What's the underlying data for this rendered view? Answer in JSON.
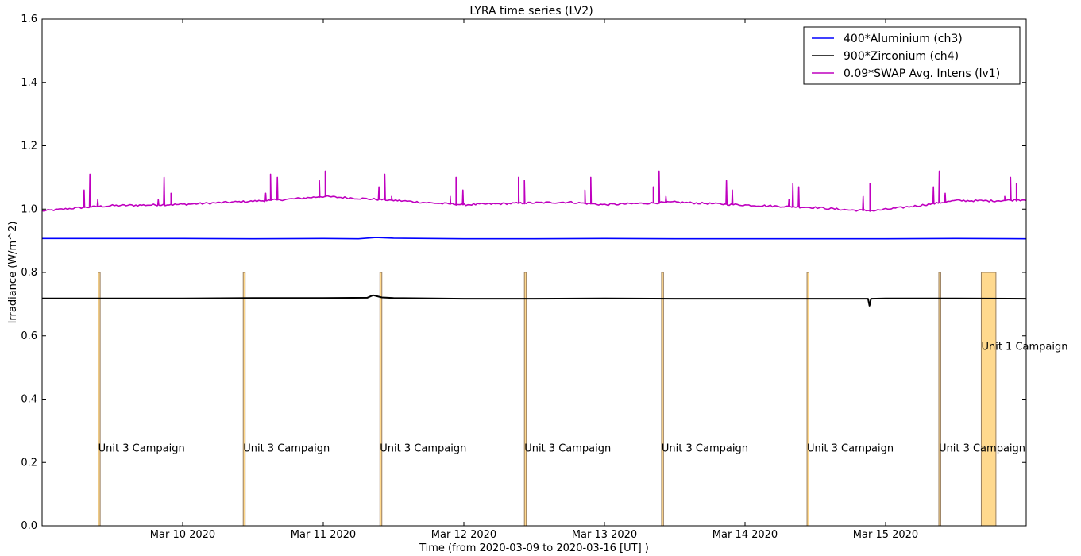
{
  "chart_data": {
    "type": "line",
    "title": "LYRA time series (LV2)",
    "xlabel": "Time (from 2020-03-09 to 2020-03-16 [UT] )",
    "ylabel": "Irradiance (W/m^2)",
    "xlim": [
      "2020-03-09T00:00",
      "2020-03-16T00:00"
    ],
    "ylim": [
      0.0,
      1.6
    ],
    "yticks": [
      {
        "value": 0.0,
        "label": "0.0"
      },
      {
        "value": 0.2,
        "label": "0.2"
      },
      {
        "value": 0.4,
        "label": "0.4"
      },
      {
        "value": 0.6,
        "label": "0.6"
      },
      {
        "value": 0.8,
        "label": "0.8"
      },
      {
        "value": 1.0,
        "label": "1.0"
      },
      {
        "value": 1.2,
        "label": "1.2"
      },
      {
        "value": 1.4,
        "label": "1.4"
      },
      {
        "value": 1.6,
        "label": "1.6"
      }
    ],
    "xticks": [
      {
        "value": "2020-03-10T00:00",
        "label": "Mar 10 2020"
      },
      {
        "value": "2020-03-11T00:00",
        "label": "Mar 11 2020"
      },
      {
        "value": "2020-03-12T00:00",
        "label": "Mar 12 2020"
      },
      {
        "value": "2020-03-13T00:00",
        "label": "Mar 13 2020"
      },
      {
        "value": "2020-03-14T00:00",
        "label": "Mar 14 2020"
      },
      {
        "value": "2020-03-15T00:00",
        "label": "Mar 15 2020"
      }
    ],
    "grid": false,
    "legend_position": "top-right",
    "series": [
      {
        "name": "400*Aluminium (ch3)",
        "color": "#0000ff",
        "points": [
          [
            "2020-03-09T00:00",
            0.907
          ],
          [
            "2020-03-09T12:00",
            0.907
          ],
          [
            "2020-03-10T00:00",
            0.907
          ],
          [
            "2020-03-10T12:00",
            0.906
          ],
          [
            "2020-03-11T00:00",
            0.907
          ],
          [
            "2020-03-11T06:00",
            0.906
          ],
          [
            "2020-03-11T09:00",
            0.91
          ],
          [
            "2020-03-11T12:00",
            0.908
          ],
          [
            "2020-03-12T00:00",
            0.906
          ],
          [
            "2020-03-12T12:00",
            0.906
          ],
          [
            "2020-03-13T00:00",
            0.907
          ],
          [
            "2020-03-13T12:00",
            0.906
          ],
          [
            "2020-03-14T00:00",
            0.906
          ],
          [
            "2020-03-14T12:00",
            0.906
          ],
          [
            "2020-03-15T00:00",
            0.906
          ],
          [
            "2020-03-15T12:00",
            0.907
          ],
          [
            "2020-03-16T00:00",
            0.906
          ]
        ]
      },
      {
        "name": "900*Zirconium (ch4)",
        "color": "#000000",
        "points": [
          [
            "2020-03-09T00:00",
            0.718
          ],
          [
            "2020-03-09T12:00",
            0.718
          ],
          [
            "2020-03-10T00:00",
            0.718
          ],
          [
            "2020-03-10T12:00",
            0.719
          ],
          [
            "2020-03-11T00:00",
            0.719
          ],
          [
            "2020-03-11T07:30",
            0.72
          ],
          [
            "2020-03-11T08:30",
            0.728
          ],
          [
            "2020-03-11T10:00",
            0.721
          ],
          [
            "2020-03-11T12:00",
            0.719
          ],
          [
            "2020-03-12T00:00",
            0.717
          ],
          [
            "2020-03-12T12:00",
            0.717
          ],
          [
            "2020-03-13T00:00",
            0.718
          ],
          [
            "2020-03-13T12:00",
            0.717
          ],
          [
            "2020-03-14T00:00",
            0.717
          ],
          [
            "2020-03-14T12:00",
            0.717
          ],
          [
            "2020-03-14T21:00",
            0.717
          ],
          [
            "2020-03-14T21:15",
            0.695
          ],
          [
            "2020-03-14T21:30",
            0.717
          ],
          [
            "2020-03-15T00:00",
            0.718
          ],
          [
            "2020-03-15T12:00",
            0.718
          ],
          [
            "2020-03-16T00:00",
            0.717
          ]
        ]
      },
      {
        "name": "0.09*SWAP Avg. Intens (lv1)",
        "color": "#bf00bf",
        "baseline": [
          [
            "2020-03-09T00:00",
            0.994
          ],
          [
            "2020-03-09T06:00",
            1.004
          ],
          [
            "2020-03-09T12:00",
            1.011
          ],
          [
            "2020-03-10T00:00",
            1.015
          ],
          [
            "2020-03-10T12:00",
            1.025
          ],
          [
            "2020-03-10T18:00",
            1.031
          ],
          [
            "2020-03-11T00:00",
            1.04
          ],
          [
            "2020-03-11T06:00",
            1.034
          ],
          [
            "2020-03-11T12:00",
            1.028
          ],
          [
            "2020-03-11T18:00",
            1.02
          ],
          [
            "2020-03-12T00:00",
            1.014
          ],
          [
            "2020-03-12T12:00",
            1.02
          ],
          [
            "2020-03-12T18:00",
            1.022
          ],
          [
            "2020-03-13T00:00",
            1.014
          ],
          [
            "2020-03-13T12:00",
            1.022
          ],
          [
            "2020-03-14T00:00",
            1.013
          ],
          [
            "2020-03-14T12:00",
            1.005
          ],
          [
            "2020-03-14T18:00",
            0.997
          ],
          [
            "2020-03-14T22:00",
            0.995
          ],
          [
            "2020-03-15T06:00",
            1.012
          ],
          [
            "2020-03-15T12:00",
            1.027
          ],
          [
            "2020-03-15T18:00",
            1.026
          ],
          [
            "2020-03-16T00:00",
            1.03
          ]
        ],
        "spikes": [
          [
            "2020-03-09T07:10",
            1.06
          ],
          [
            "2020-03-09T08:10",
            1.11
          ],
          [
            "2020-03-09T09:30",
            1.03
          ],
          [
            "2020-03-09T19:50",
            1.03
          ],
          [
            "2020-03-09T20:50",
            1.1
          ],
          [
            "2020-03-09T22:00",
            1.05
          ],
          [
            "2020-03-10T14:10",
            1.05
          ],
          [
            "2020-03-10T15:00",
            1.11
          ],
          [
            "2020-03-10T16:10",
            1.1
          ],
          [
            "2020-03-10T23:20",
            1.09
          ],
          [
            "2020-03-11T00:20",
            1.12
          ],
          [
            "2020-03-11T09:30",
            1.07
          ],
          [
            "2020-03-11T10:30",
            1.11
          ],
          [
            "2020-03-11T11:40",
            1.04
          ],
          [
            "2020-03-11T21:40",
            1.04
          ],
          [
            "2020-03-11T22:40",
            1.1
          ],
          [
            "2020-03-11T23:50",
            1.06
          ],
          [
            "2020-03-12T09:20",
            1.1
          ],
          [
            "2020-03-12T10:20",
            1.09
          ],
          [
            "2020-03-12T20:40",
            1.06
          ],
          [
            "2020-03-12T21:40",
            1.1
          ],
          [
            "2020-03-13T08:20",
            1.07
          ],
          [
            "2020-03-13T09:20",
            1.12
          ],
          [
            "2020-03-13T10:30",
            1.04
          ],
          [
            "2020-03-13T20:50",
            1.09
          ],
          [
            "2020-03-13T21:50",
            1.06
          ],
          [
            "2020-03-14T07:30",
            1.03
          ],
          [
            "2020-03-14T08:10",
            1.08
          ],
          [
            "2020-03-14T09:10",
            1.07
          ],
          [
            "2020-03-14T20:10",
            1.04
          ],
          [
            "2020-03-14T21:20",
            1.08
          ],
          [
            "2020-03-15T08:10",
            1.07
          ],
          [
            "2020-03-15T09:10",
            1.12
          ],
          [
            "2020-03-15T10:10",
            1.05
          ],
          [
            "2020-03-15T20:20",
            1.04
          ],
          [
            "2020-03-15T21:20",
            1.1
          ],
          [
            "2020-03-15T22:20",
            1.08
          ]
        ]
      }
    ],
    "campaign_bars": [
      {
        "start": "2020-03-09T09:35",
        "end": "2020-03-09T09:55",
        "height": 0.8
      },
      {
        "start": "2020-03-10T10:20",
        "end": "2020-03-10T10:40",
        "height": 0.8
      },
      {
        "start": "2020-03-11T09:40",
        "end": "2020-03-11T10:00",
        "height": 0.8
      },
      {
        "start": "2020-03-12T10:20",
        "end": "2020-03-12T10:40",
        "height": 0.8
      },
      {
        "start": "2020-03-13T09:45",
        "end": "2020-03-13T10:05",
        "height": 0.8
      },
      {
        "start": "2020-03-14T10:35",
        "end": "2020-03-14T10:55",
        "height": 0.8
      },
      {
        "start": "2020-03-15T09:05",
        "end": "2020-03-15T09:25",
        "height": 0.8
      },
      {
        "start": "2020-03-15T16:20",
        "end": "2020-03-15T18:50",
        "height": 0.8
      }
    ],
    "bar_fill": "#ffd98e",
    "bar_edge": "#9a8060",
    "annotations": [
      {
        "label": "Unit 3 Campaign",
        "x": "2020-03-09T09:35",
        "y": 0.245
      },
      {
        "label": "Unit 3 Campaign",
        "x": "2020-03-10T10:20",
        "y": 0.245
      },
      {
        "label": "Unit 3 Campaign",
        "x": "2020-03-11T09:40",
        "y": 0.245
      },
      {
        "label": "Unit 3 Campaign",
        "x": "2020-03-12T10:20",
        "y": 0.245
      },
      {
        "label": "Unit 3 Campaign",
        "x": "2020-03-13T09:45",
        "y": 0.245
      },
      {
        "label": "Unit 3 Campaign",
        "x": "2020-03-14T10:35",
        "y": 0.245
      },
      {
        "label": "Unit 3 Campaign",
        "x": "2020-03-15T09:05",
        "y": 0.245
      },
      {
        "label": "Unit 1 Campaign",
        "x": "2020-03-15T16:20",
        "y": 0.565
      }
    ]
  }
}
